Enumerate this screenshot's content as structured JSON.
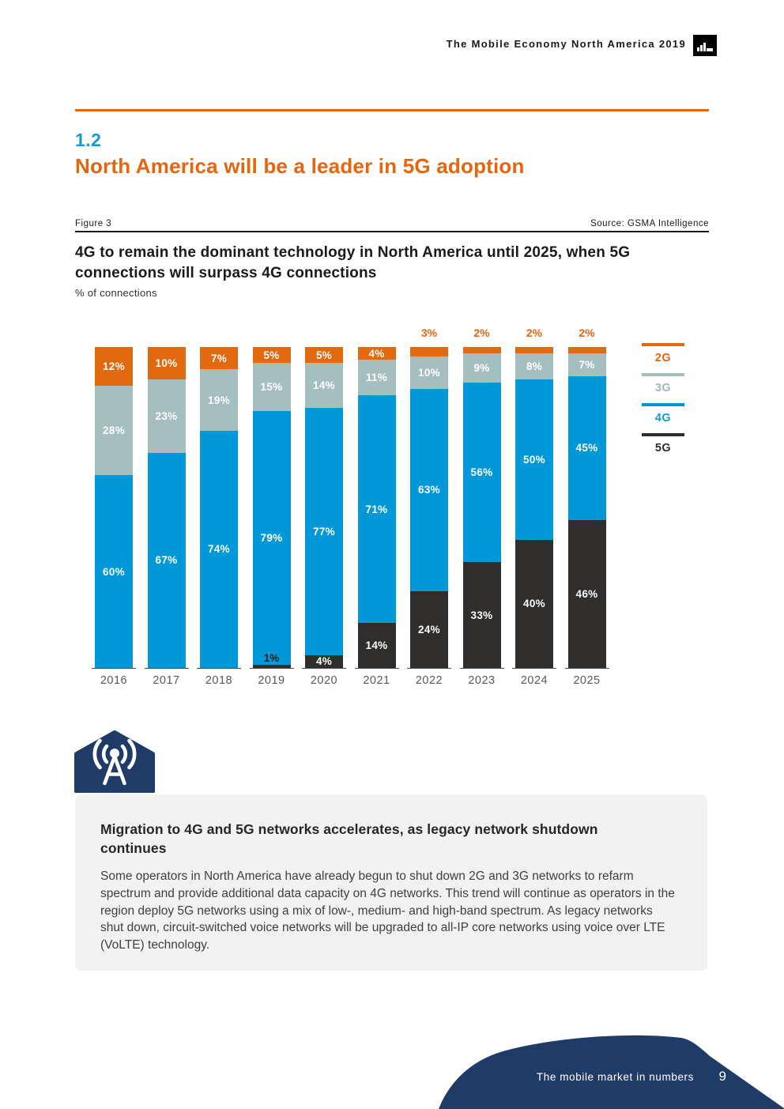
{
  "header": {
    "title": "The Mobile Economy North America 2019"
  },
  "section": {
    "number": "1.2",
    "title": "North America will be a leader in 5G adoption"
  },
  "figure": {
    "label": "Figure 3",
    "source": "Source: GSMA Intelligence",
    "title": "4G to remain the dominant technology in North America until 2025, when 5G connections will surpass 4G connections",
    "subtitle": "% of connections"
  },
  "colors": {
    "accent_orange": "#E8650F",
    "accent_blue": "#169BD8",
    "seg_2g": "#E2690F",
    "seg_3g": "#A5BEC0",
    "seg_4g": "#0098D8",
    "seg_5g": "#302E2C",
    "legend_3g_text": "#9FB9BB",
    "navy": "#1F3C69"
  },
  "chart_data": {
    "type": "bar",
    "stacked": true,
    "title": "4G to remain the dominant technology in North America until 2025, when 5G connections will surpass 4G connections",
    "ylabel": "% of connections",
    "ylim": [
      0,
      100
    ],
    "grid": false,
    "legend_position": "right",
    "categories": [
      "2016",
      "2017",
      "2018",
      "2019",
      "2020",
      "2021",
      "2022",
      "2023",
      "2024",
      "2025"
    ],
    "series": [
      {
        "name": "2G",
        "color": "#E2690F",
        "label_color": "#E8650F",
        "values": [
          12,
          10,
          7,
          5,
          5,
          4,
          3,
          2,
          2,
          2
        ]
      },
      {
        "name": "3G",
        "color": "#A5BEC0",
        "label_color": "#9FB9BB",
        "values": [
          28,
          23,
          19,
          15,
          14,
          11,
          10,
          9,
          8,
          7
        ]
      },
      {
        "name": "4G",
        "color": "#0098D8",
        "label_color": "#169BD8",
        "values": [
          60,
          67,
          74,
          79,
          77,
          71,
          63,
          56,
          50,
          45
        ]
      },
      {
        "name": "5G",
        "color": "#302E2C",
        "label_color": "#302E2C",
        "values": [
          0,
          0,
          0,
          1,
          4,
          14,
          24,
          33,
          40,
          46
        ]
      }
    ]
  },
  "callout": {
    "title": "Migration to 4G and 5G networks accelerates, as legacy network shutdown continues",
    "body": "Some operators in North America have already begun to shut down 2G and 3G networks to refarm spectrum and provide additional data capacity on 4G networks. This trend will continue as operators in the region deploy 5G networks using a mix of low-, medium- and high-band spectrum. As legacy networks shut down, circuit-switched voice networks will be upgraded to all-IP core networks using voice over LTE (VoLTE) technology."
  },
  "footer": {
    "label": "The mobile market in numbers",
    "page_number": "9"
  }
}
